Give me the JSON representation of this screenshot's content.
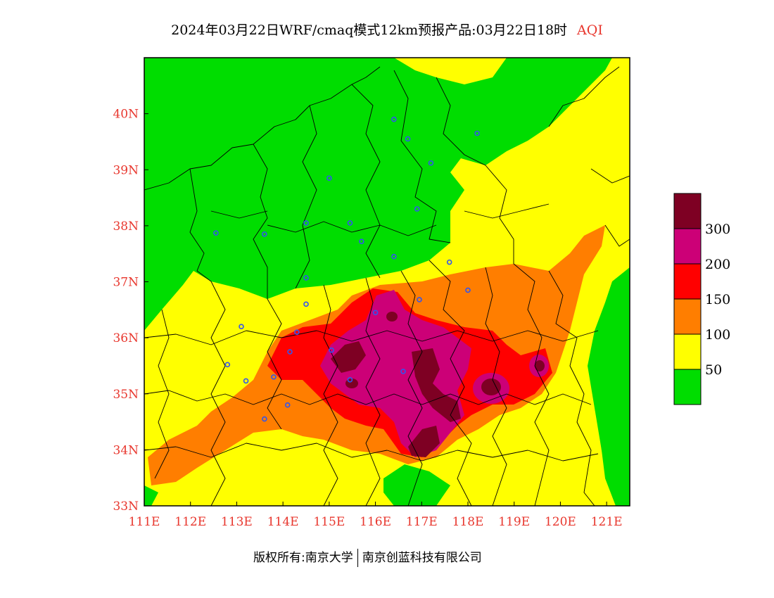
{
  "header": {
    "title": "2024年03月22日WRF/cmaq模式12km预报产品:03月22日18时",
    "title_suffix": "AQI"
  },
  "footer": {
    "copyright": "版权所有:南京大学",
    "company": "南京创蓝科技有限公司"
  },
  "map": {
    "lon_range": [
      111,
      121.5
    ],
    "lat_range": [
      33,
      41
    ],
    "lon_ticks": [
      {
        "value": 111,
        "label": "111E"
      },
      {
        "value": 112,
        "label": "112E"
      },
      {
        "value": 113,
        "label": "113E"
      },
      {
        "value": 114,
        "label": "114E"
      },
      {
        "value": 115,
        "label": "115E"
      },
      {
        "value": 116,
        "label": "116E"
      },
      {
        "value": 117,
        "label": "117E"
      },
      {
        "value": 118,
        "label": "118E"
      },
      {
        "value": 119,
        "label": "119E"
      },
      {
        "value": 120,
        "label": "120E"
      },
      {
        "value": 121,
        "label": "121E"
      }
    ],
    "lat_ticks": [
      {
        "value": 33,
        "label": "33N"
      },
      {
        "value": 34,
        "label": "34N"
      },
      {
        "value": 35,
        "label": "35N"
      },
      {
        "value": 36,
        "label": "36N"
      },
      {
        "value": 37,
        "label": "37N"
      },
      {
        "value": 38,
        "label": "38N"
      },
      {
        "value": 39,
        "label": "39N"
      },
      {
        "value": 40,
        "label": "40N"
      }
    ],
    "tick_color": "#e8372e",
    "city_marker_color": "#3355ee",
    "cities": [
      {
        "lon": 116.4,
        "lat": 39.9
      },
      {
        "lon": 116.7,
        "lat": 39.55
      },
      {
        "lon": 117.2,
        "lat": 39.12
      },
      {
        "lon": 118.2,
        "lat": 39.65
      },
      {
        "lon": 115.0,
        "lat": 38.85
      },
      {
        "lon": 115.45,
        "lat": 38.05
      },
      {
        "lon": 116.9,
        "lat": 38.3
      },
      {
        "lon": 112.55,
        "lat": 37.87
      },
      {
        "lon": 113.6,
        "lat": 37.85
      },
      {
        "lon": 114.5,
        "lat": 38.05
      },
      {
        "lon": 115.7,
        "lat": 37.72
      },
      {
        "lon": 116.4,
        "lat": 37.45
      },
      {
        "lon": 117.6,
        "lat": 37.35
      },
      {
        "lon": 114.5,
        "lat": 37.07
      },
      {
        "lon": 114.5,
        "lat": 36.6
      },
      {
        "lon": 116.95,
        "lat": 36.68
      },
      {
        "lon": 118.0,
        "lat": 36.85
      },
      {
        "lon": 113.1,
        "lat": 36.2
      },
      {
        "lon": 114.3,
        "lat": 36.1
      },
      {
        "lon": 116.0,
        "lat": 36.45
      },
      {
        "lon": 115.05,
        "lat": 35.78
      },
      {
        "lon": 114.15,
        "lat": 35.75
      },
      {
        "lon": 112.8,
        "lat": 35.52
      },
      {
        "lon": 113.2,
        "lat": 35.23
      },
      {
        "lon": 113.8,
        "lat": 35.3
      },
      {
        "lon": 115.45,
        "lat": 35.25
      },
      {
        "lon": 116.6,
        "lat": 35.4
      },
      {
        "lon": 114.1,
        "lat": 34.8
      },
      {
        "lon": 113.6,
        "lat": 34.55
      }
    ]
  },
  "legend": {
    "bins": [
      {
        "color": "#00dd00",
        "label": "50"
      },
      {
        "color": "#ffff00",
        "label": "100"
      },
      {
        "color": "#ff7e00",
        "label": "150"
      },
      {
        "color": "#ff0000",
        "label": "200"
      },
      {
        "color": "#cc0077",
        "label": "300"
      },
      {
        "color": "#7e0023",
        "label": ""
      }
    ]
  }
}
